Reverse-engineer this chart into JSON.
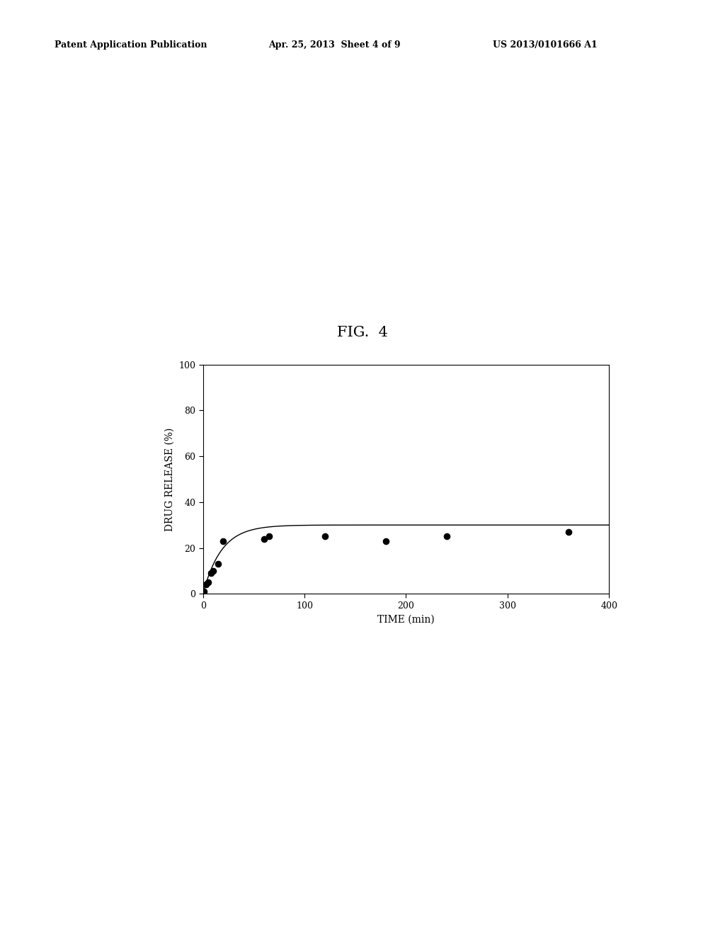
{
  "title": "FIG.  4",
  "xlabel": "TIME (min)",
  "ylabel": "DRUG RELEASE (%)",
  "xlim": [
    0,
    400
  ],
  "ylim": [
    0,
    100
  ],
  "xticks": [
    0,
    100,
    200,
    300,
    400
  ],
  "yticks": [
    0,
    20,
    40,
    60,
    80,
    100
  ],
  "scatter_x": [
    0,
    1,
    3,
    5,
    8,
    10,
    15,
    20,
    60,
    65,
    120,
    180,
    240,
    360
  ],
  "scatter_y": [
    0,
    1,
    4,
    5,
    9,
    10,
    13,
    23,
    24,
    25,
    25,
    23,
    25,
    27
  ],
  "curve_asymptote": 30,
  "curve_rate": 0.055,
  "background_color": "#ffffff",
  "line_color": "#000000",
  "scatter_color": "#000000",
  "header_left": "Patent Application Publication",
  "header_center": "Apr. 25, 2013  Sheet 4 of 9",
  "header_right": "US 2013/0101666 A1"
}
